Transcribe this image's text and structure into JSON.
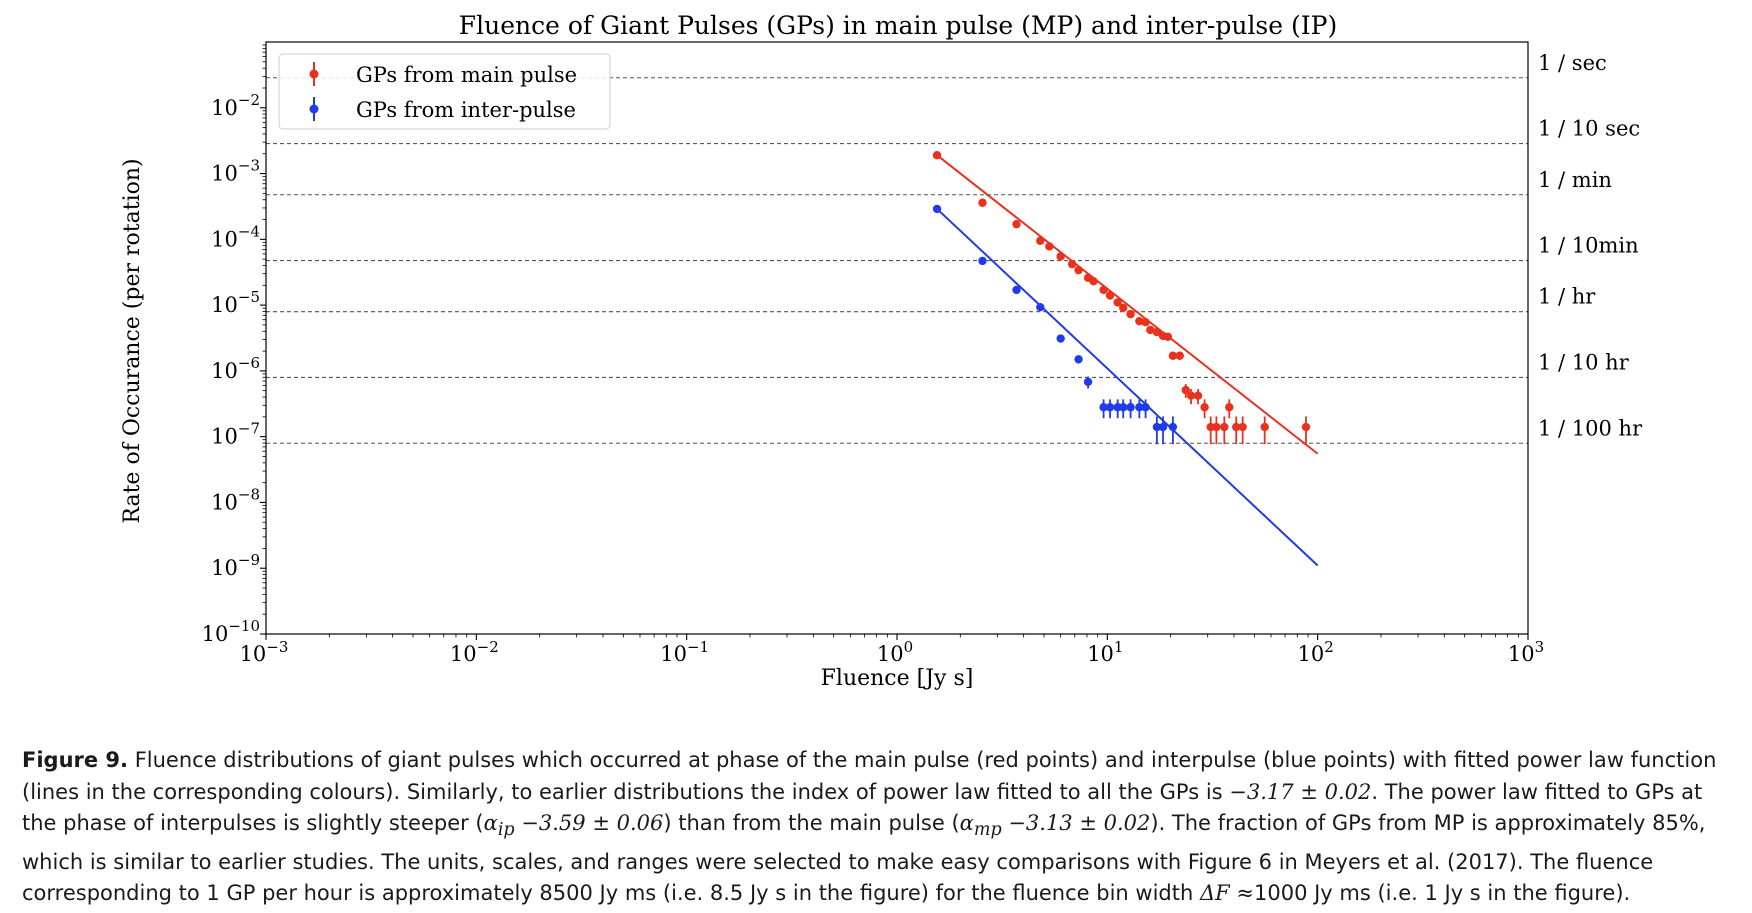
{
  "chart_data": {
    "type": "scatter",
    "title": "Fluence of Giant Pulses (GPs) in main pulse (MP) and inter-pulse (IP)",
    "xlabel": "Fluence [Jy s]",
    "ylabel": "Rate of Occurance (per rotation)",
    "xscale": "log",
    "yscale": "log",
    "xlim": [
      0.001,
      1000
    ],
    "ylim": [
      1e-10,
      0.1
    ],
    "x_ticks": [
      {
        "base": "10",
        "exp": "−3",
        "value": 0.001
      },
      {
        "base": "10",
        "exp": "−2",
        "value": 0.01
      },
      {
        "base": "10",
        "exp": "−1",
        "value": 0.1
      },
      {
        "base": "10",
        "exp": "0",
        "value": 1
      },
      {
        "base": "10",
        "exp": "1",
        "value": 10
      },
      {
        "base": "10",
        "exp": "2",
        "value": 100
      },
      {
        "base": "10",
        "exp": "3",
        "value": 1000
      }
    ],
    "y_ticks": [
      {
        "base": "10",
        "exp": "−2",
        "value": 0.01
      },
      {
        "base": "10",
        "exp": "−3",
        "value": 0.001
      },
      {
        "base": "10",
        "exp": "−4",
        "value": 0.0001
      },
      {
        "base": "10",
        "exp": "−5",
        "value": 1e-05
      },
      {
        "base": "10",
        "exp": "−6",
        "value": 1e-06
      },
      {
        "base": "10",
        "exp": "−7",
        "value": 1e-07
      },
      {
        "base": "10",
        "exp": "−8",
        "value": 1e-08
      },
      {
        "base": "10",
        "exp": "−9",
        "value": 1e-09
      },
      {
        "base": "10",
        "exp": "−10",
        "value": 1e-10
      }
    ],
    "reference_lines": [
      {
        "label": "1 / sec",
        "value": 0.0286
      },
      {
        "label": "1 / 10 sec",
        "value": 0.00286
      },
      {
        "label": "1 / min",
        "value": 0.000476
      },
      {
        "label": "1 / 10min",
        "value": 4.76e-05
      },
      {
        "label": "1 / hr",
        "value": 7.94e-06
      },
      {
        "label": "1 / 10 hr",
        "value": 7.94e-07
      },
      {
        "label": "1 / 100 hr",
        "value": 7.94e-08
      }
    ],
    "legend": "top-left",
    "series": [
      {
        "name": "GPs from main pulse",
        "color": "#e8321e",
        "points": [
          {
            "x": 1.55,
            "y": 0.0019
          },
          {
            "x": 2.55,
            "y": 0.00036
          },
          {
            "x": 3.7,
            "y": 0.00017
          },
          {
            "x": 4.8,
            "y": 9.5e-05
          },
          {
            "x": 5.3,
            "y": 7.8e-05
          },
          {
            "x": 6.0,
            "y": 5.5e-05
          },
          {
            "x": 6.8,
            "y": 4.2e-05
          },
          {
            "x": 7.3,
            "y": 3.4e-05
          },
          {
            "x": 8.1,
            "y": 2.6e-05
          },
          {
            "x": 8.6,
            "y": 2.3e-05
          },
          {
            "x": 9.6,
            "y": 1.7e-05
          },
          {
            "x": 10.3,
            "y": 1.4e-05
          },
          {
            "x": 11.2,
            "y": 1.1e-05
          },
          {
            "x": 11.9,
            "y": 9.1e-06
          },
          {
            "x": 12.9,
            "y": 7.3e-06
          },
          {
            "x": 14.2,
            "y": 5.7e-06
          },
          {
            "x": 15.2,
            "y": 5.5e-06
          },
          {
            "x": 16.0,
            "y": 4.2e-06
          },
          {
            "x": 17.2,
            "y": 3.9e-06
          },
          {
            "x": 18.4,
            "y": 3.4e-06
          },
          {
            "x": 19.4,
            "y": 3.3e-06
          },
          {
            "x": 20.5,
            "y": 1.7e-06
          },
          {
            "x": 22.1,
            "y": 1.7e-06
          },
          {
            "x": 23.6,
            "y": 5.1e-07
          },
          {
            "x": 25.0,
            "y": 4.2e-07
          },
          {
            "x": 27.0,
            "y": 4.2e-07
          },
          {
            "x": 29.0,
            "y": 2.8e-07
          },
          {
            "x": 31.0,
            "y": 1.4e-07
          },
          {
            "x": 33.0,
            "y": 1.4e-07
          },
          {
            "x": 36.0,
            "y": 1.4e-07
          },
          {
            "x": 38.0,
            "y": 2.8e-07
          },
          {
            "x": 41.0,
            "y": 1.4e-07
          },
          {
            "x": 44.0,
            "y": 1.4e-07
          },
          {
            "x": 56.0,
            "y": 1.4e-07
          },
          {
            "x": 88.0,
            "y": 1.4e-07
          }
        ],
        "fit": {
          "x1": 1.55,
          "y1": 0.0019,
          "x2": 100,
          "y2": 5.5e-08
        }
      },
      {
        "name": "GPs from inter-pulse",
        "color": "#1f3bea",
        "points": [
          {
            "x": 1.55,
            "y": 0.00029
          },
          {
            "x": 2.55,
            "y": 4.7e-05
          },
          {
            "x": 3.7,
            "y": 1.7e-05
          },
          {
            "x": 4.8,
            "y": 9.3e-06
          },
          {
            "x": 6.0,
            "y": 3.1e-06
          },
          {
            "x": 7.3,
            "y": 1.5e-06
          },
          {
            "x": 8.1,
            "y": 6.8e-07
          },
          {
            "x": 9.6,
            "y": 2.8e-07
          },
          {
            "x": 10.3,
            "y": 2.8e-07
          },
          {
            "x": 11.2,
            "y": 2.8e-07
          },
          {
            "x": 11.9,
            "y": 2.8e-07
          },
          {
            "x": 12.9,
            "y": 2.8e-07
          },
          {
            "x": 14.2,
            "y": 2.8e-07
          },
          {
            "x": 15.2,
            "y": 2.8e-07
          },
          {
            "x": 17.2,
            "y": 1.4e-07
          },
          {
            "x": 18.4,
            "y": 1.4e-07
          },
          {
            "x": 20.5,
            "y": 1.4e-07
          }
        ],
        "fit": {
          "x1": 1.55,
          "y1": 0.00029,
          "x2": 100,
          "y2": 1.1e-09
        }
      }
    ]
  },
  "caption": {
    "label": "Figure 9.",
    "t1": " Fluence distributions of giant pulses which occurred at phase of the main pulse (red points) and interpulse (blue points) with fitted power law function (lines in the corresponding colours). Similarly, to earlier distributions the index of power law fitted to all the GPs is ",
    "m1": "−3.17 ± 0.02",
    "t2": ". The power law fitted to GPs at the phase of interpulses is slightly steeper (",
    "m2": "α",
    "m2sub": "ip",
    "m3": " −3.59 ± 0.06",
    "t3": ") than from the main pulse (",
    "m4": "α",
    "m4sub": "mp",
    "m5": " −3.13 ± 0.02",
    "t4": "). The fraction of GPs from MP is approximately 85%, which is similar to earlier studies. The units, scales, and ranges were selected to make easy comparisons with Figure 6 in Meyers et al. (2017). The fluence corresponding to 1 GP per hour is approximately 8500 Jy ms (i.e. 8.5 Jy s in the figure) for the fluence bin width ",
    "m6": "ΔF",
    "m7": " ≈",
    "t5": "1000 Jy ms (i.e. 1 Jy s in the figure)."
  }
}
